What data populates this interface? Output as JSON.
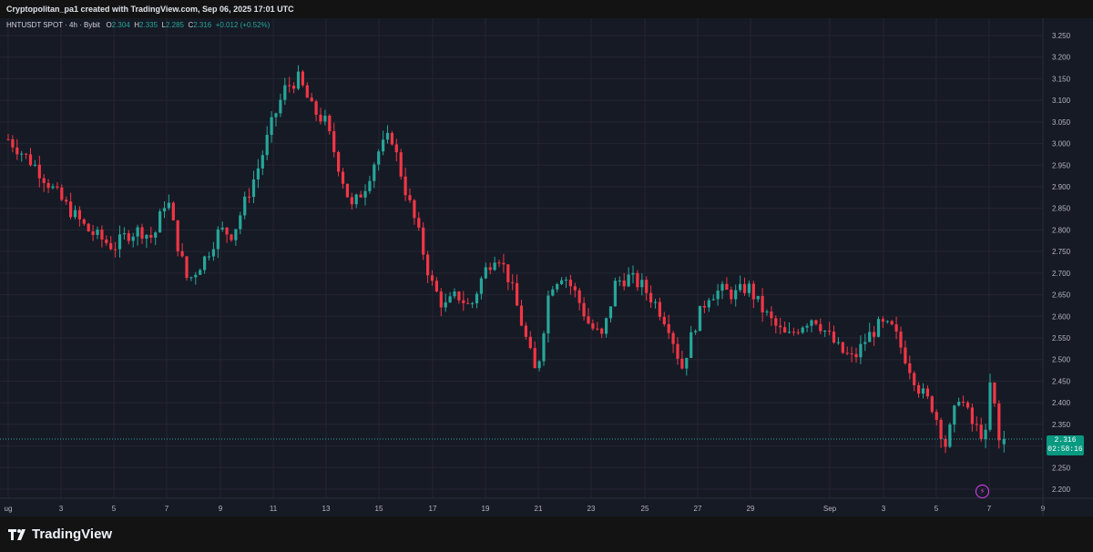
{
  "header": {
    "attribution": "Cryptopolitan_pa1 created with TradingView.com, Sep 06, 2025 17:01 UTC"
  },
  "legend": {
    "symbol": "HNTUSDT SPOT · 4h · Bybit",
    "open_label": "O",
    "open": "2.304",
    "high_label": "H",
    "high": "2.335",
    "low_label": "L",
    "low": "2.285",
    "close_label": "C",
    "close": "2.316",
    "change": "+0.012 (+0.52%)"
  },
  "price_label": {
    "price": "2.316",
    "countdown": "02:58:16"
  },
  "footer": {
    "brand": "TradingView"
  },
  "colors": {
    "up": "#26a69a",
    "down": "#f23645",
    "background": "#161a25",
    "grid": "#242733",
    "text": "#b2b5be",
    "price_badge": "#089981"
  },
  "chart_data": {
    "type": "candlestick",
    "symbol": "HNTUSDT SPOT",
    "interval": "4h",
    "exchange": "Bybit",
    "ylim": [
      2.18,
      3.27
    ],
    "y_ticks": [
      "3.250",
      "3.200",
      "3.150",
      "3.100",
      "3.050",
      "3.000",
      "2.950",
      "2.900",
      "2.850",
      "2.800",
      "2.750",
      "2.700",
      "2.650",
      "2.600",
      "2.550",
      "2.500",
      "2.450",
      "2.400",
      "2.350",
      "2.300",
      "2.250",
      "2.200"
    ],
    "x_ticks": [
      "ug",
      "3",
      "5",
      "7",
      "9",
      "11",
      "13",
      "15",
      "17",
      "19",
      "21",
      "23",
      "25",
      "27",
      "29",
      "Sep",
      "3",
      "5",
      "7",
      "9"
    ],
    "grid": true,
    "last_price": 2.316,
    "close_path": [
      [
        1,
        3.01
      ],
      [
        2,
        2.95
      ],
      [
        3,
        2.87
      ],
      [
        4,
        2.8
      ],
      [
        5,
        2.76
      ],
      [
        5.5,
        2.79
      ],
      [
        6,
        2.8
      ],
      [
        6.5,
        2.78
      ],
      [
        7,
        2.88
      ],
      [
        7.4,
        2.77
      ],
      [
        7.8,
        2.68
      ],
      [
        8.5,
        2.74
      ],
      [
        9,
        2.8
      ],
      [
        9.5,
        2.79
      ],
      [
        10,
        2.87
      ],
      [
        10.5,
        2.95
      ],
      [
        11,
        3.05
      ],
      [
        11.5,
        3.13
      ],
      [
        12,
        3.15
      ],
      [
        12.5,
        3.08
      ],
      [
        13,
        3.05
      ],
      [
        13.5,
        2.95
      ],
      [
        14,
        2.85
      ],
      [
        14.5,
        2.9
      ],
      [
        15,
        2.98
      ],
      [
        15.5,
        3.02
      ],
      [
        16,
        2.9
      ],
      [
        16.5,
        2.8
      ],
      [
        17,
        2.68
      ],
      [
        17.5,
        2.62
      ],
      [
        18,
        2.65
      ],
      [
        18.5,
        2.62
      ],
      [
        19,
        2.7
      ],
      [
        19.5,
        2.75
      ],
      [
        20,
        2.68
      ],
      [
        20.5,
        2.57
      ],
      [
        21,
        2.46
      ],
      [
        21.5,
        2.67
      ],
      [
        22,
        2.7
      ],
      [
        22.5,
        2.65
      ],
      [
        23,
        2.58
      ],
      [
        23.5,
        2.55
      ],
      [
        24,
        2.68
      ],
      [
        24.5,
        2.69
      ],
      [
        25,
        2.67
      ],
      [
        25.5,
        2.63
      ],
      [
        26,
        2.58
      ],
      [
        26.5,
        2.48
      ],
      [
        27,
        2.58
      ],
      [
        27.5,
        2.65
      ],
      [
        28,
        2.66
      ],
      [
        28.5,
        2.65
      ],
      [
        29,
        2.67
      ],
      [
        29.5,
        2.62
      ],
      [
        30,
        2.58
      ],
      [
        30.5,
        2.55
      ],
      [
        31,
        2.58
      ],
      [
        31.5,
        2.6
      ],
      [
        32,
        2.56
      ],
      [
        32.5,
        2.52
      ],
      [
        33,
        2.5
      ],
      [
        33.5,
        2.55
      ],
      [
        34,
        2.58
      ],
      [
        34.5,
        2.57
      ],
      [
        35,
        2.5
      ],
      [
        35.5,
        2.43
      ],
      [
        36,
        2.39
      ],
      [
        36.5,
        2.3
      ],
      [
        37,
        2.42
      ],
      [
        37.5,
        2.35
      ],
      [
        38,
        2.32
      ],
      [
        38.2,
        2.46
      ],
      [
        38.5,
        2.31
      ],
      [
        38.7,
        2.316
      ]
    ],
    "last_candle": {
      "open": 2.304,
      "high": 2.335,
      "low": 2.285,
      "close": 2.316
    }
  }
}
